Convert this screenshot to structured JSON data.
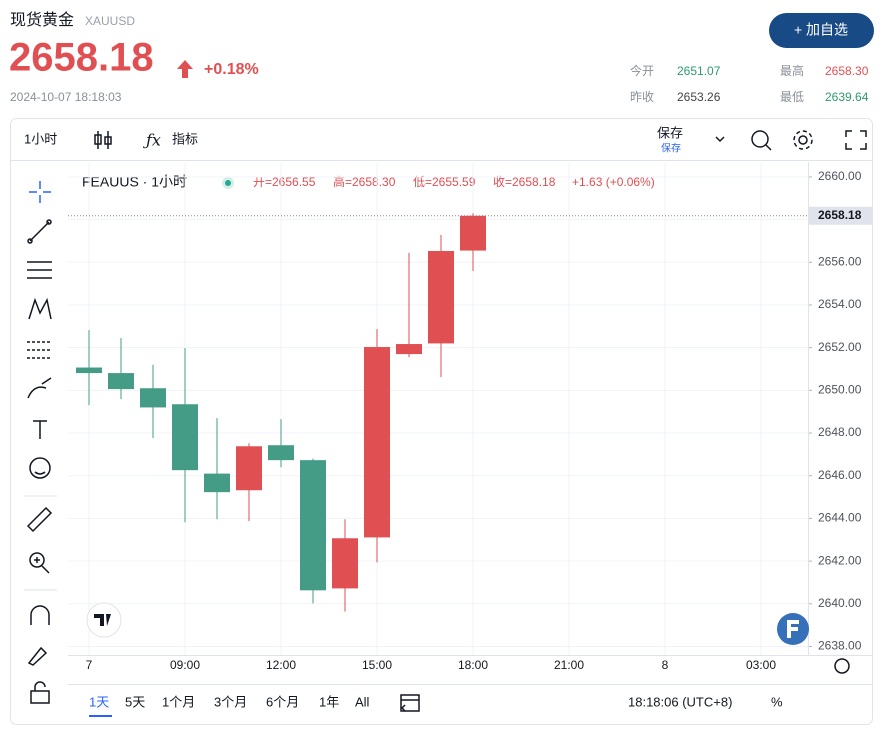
{
  "header": {
    "name": "现货黄金",
    "symbol": "XAUUSD",
    "price": "2658.18",
    "change": "+0.18%",
    "timestamp": "2024-10-07 18:18:03",
    "button": "+ 加自选",
    "stats": [
      {
        "label": "今开",
        "value": "2651.07"
      },
      {
        "label": "最高",
        "value": "2658.30"
      },
      {
        "label": "昨收",
        "value": "2653.26"
      },
      {
        "label": "最低",
        "value": "2639.64"
      }
    ]
  },
  "toolbar": {
    "interval": "1小时",
    "indicators": "指标",
    "save": "保存",
    "save_sub": "保存"
  },
  "bottom_bar": {
    "ranges": [
      "1天",
      "5天",
      "1个月",
      "3个月",
      "6个月",
      "1年",
      "All"
    ],
    "clock": "18:18:06 (UTC+8)",
    "percent": "%"
  },
  "chart_data": {
    "type": "candlestick",
    "title": "FEAUUS · 1小时",
    "legend_items": [
      "开=2656.55",
      "高=2658.30",
      "低=2655.59",
      "收=2658.18",
      "+1.63 (+0.06%)"
    ],
    "categories": [
      "7",
      null,
      null,
      "09:00",
      null,
      null,
      "12:00",
      null,
      null,
      "15:00",
      null,
      null,
      "18:00",
      null,
      null,
      "21:00",
      null,
      null,
      "8",
      null,
      null,
      "03:00"
    ],
    "open": [
      2651.07,
      2650.81,
      2650.1,
      2649.35,
      2646.1,
      2645.32,
      2647.43,
      2646.73,
      2640.72,
      2643.11,
      2651.7,
      2652.2,
      2656.55,
      null,
      null,
      null,
      null,
      null,
      null,
      null,
      null,
      null
    ],
    "high": [
      2652.82,
      2652.45,
      2651.2,
      2651.98,
      2648.7,
      2647.52,
      2648.65,
      2646.8,
      2643.96,
      2652.87,
      2656.44,
      2657.28,
      2658.3,
      null,
      null,
      null,
      null,
      null,
      null,
      null,
      null,
      null
    ],
    "low": [
      2649.31,
      2649.59,
      2647.76,
      2643.82,
      2643.96,
      2643.87,
      2646.4,
      2640.02,
      2639.64,
      2641.94,
      2651.56,
      2650.62,
      2655.59,
      null,
      null,
      null,
      null,
      null,
      null,
      null,
      null,
      null
    ],
    "close": [
      2650.81,
      2650.06,
      2649.2,
      2646.26,
      2645.23,
      2647.38,
      2646.73,
      2640.63,
      2643.07,
      2652.03,
      2652.17,
      2656.53,
      2658.18,
      null,
      null,
      null,
      null,
      null,
      null,
      null,
      null,
      null
    ],
    "up_color": "#e04f52",
    "down_color": "#459c86",
    "ylim": [
      2637.6,
      2660.7
    ],
    "yticks": [
      {
        "value": 2638,
        "label": "2638.00"
      },
      {
        "value": 2640,
        "label": "2640.00"
      },
      {
        "value": 2642,
        "label": "2642.00"
      },
      {
        "value": 2644,
        "label": "2644.00"
      },
      {
        "value": 2646,
        "label": "2646.00"
      },
      {
        "value": 2648,
        "label": "2648.00"
      },
      {
        "value": 2650,
        "label": "2650.00"
      },
      {
        "value": 2652,
        "label": "2652.00"
      },
      {
        "value": 2654,
        "label": "2654.00"
      },
      {
        "value": 2656,
        "label": "2656.00"
      },
      {
        "value": 2658,
        "label": "2658.00"
      },
      {
        "value": 2660,
        "label": "2660.00"
      }
    ],
    "last_price": {
      "value": 2658.18,
      "label": "2658.18"
    },
    "grid": true
  }
}
